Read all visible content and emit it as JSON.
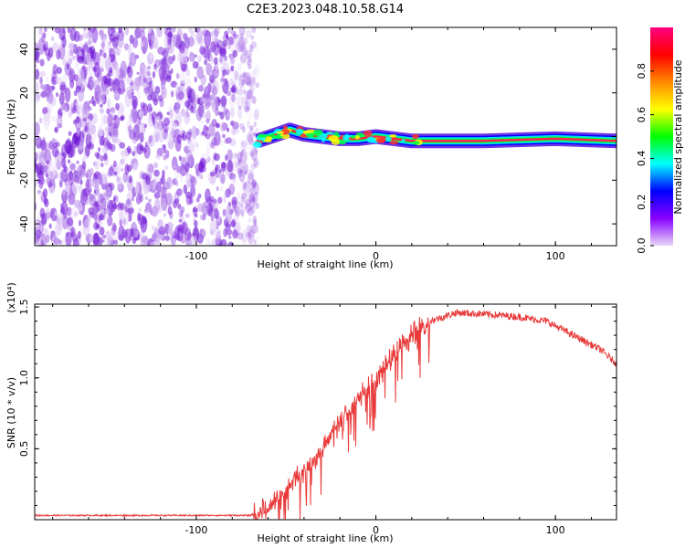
{
  "title": "C2E3.2023.048.10.58.G14",
  "chart_data": [
    {
      "type": "heatmap",
      "xlabel": "Height of straight line (km)",
      "ylabel": "Frequency (Hz)",
      "xlim": [
        -190,
        134
      ],
      "ylim": [
        -50,
        50
      ],
      "x_ticks": [
        -100,
        0,
        100
      ],
      "y_ticks": [
        -40,
        -20,
        0,
        20,
        40
      ],
      "colorbar": {
        "label": "Normalized spectral amplitude",
        "range": [
          0,
          1
        ],
        "ticks": [
          "0.0",
          "0.2",
          "0.4",
          "0.6",
          "0.8"
        ],
        "stops": [
          "#e8d8f8",
          "#8800ff",
          "#0000ff",
          "#00ffff",
          "#00ff00",
          "#ffff00",
          "#ff8800",
          "#ff0000",
          "#ff0080"
        ]
      },
      "noise_region_x": [
        -190,
        -68
      ],
      "signal_start_x": -68,
      "signal_trace": [
        {
          "x": -66,
          "y": -2
        },
        {
          "x": -55,
          "y": 1
        },
        {
          "x": -48,
          "y": 3
        },
        {
          "x": -40,
          "y": 1
        },
        {
          "x": -30,
          "y": 0
        },
        {
          "x": -20,
          "y": -1
        },
        {
          "x": -10,
          "y": -1
        },
        {
          "x": 0,
          "y": 0
        },
        {
          "x": 10,
          "y": -1
        },
        {
          "x": 20,
          "y": -2
        },
        {
          "x": 60,
          "y": -2
        },
        {
          "x": 100,
          "y": -1
        },
        {
          "x": 134,
          "y": -2
        }
      ]
    },
    {
      "type": "line",
      "xlabel": "Height of straight line (km)",
      "ylabel": "SNR (10 * v/v)",
      "y_multiplier": "(x10⁴)",
      "xlim": [
        -190,
        134
      ],
      "ylim": [
        0,
        1.52
      ],
      "x_ticks": [
        -100,
        0,
        100
      ],
      "y_ticks": [
        "0.5",
        "1.0",
        "1.5"
      ],
      "series": [
        {
          "color": "#e83a3a",
          "points": [
            {
              "x": -190,
              "y": 0.03
            },
            {
              "x": -100,
              "y": 0.03
            },
            {
              "x": -70,
              "y": 0.03
            },
            {
              "x": -60,
              "y": 0.08
            },
            {
              "x": -50,
              "y": 0.22
            },
            {
              "x": -40,
              "y": 0.35
            },
            {
              "x": -30,
              "y": 0.5
            },
            {
              "x": -20,
              "y": 0.68
            },
            {
              "x": -10,
              "y": 0.85
            },
            {
              "x": 0,
              "y": 1.0
            },
            {
              "x": 10,
              "y": 1.15
            },
            {
              "x": 20,
              "y": 1.3
            },
            {
              "x": 30,
              "y": 1.4
            },
            {
              "x": 45,
              "y": 1.46
            },
            {
              "x": 60,
              "y": 1.45
            },
            {
              "x": 80,
              "y": 1.43
            },
            {
              "x": 95,
              "y": 1.4
            },
            {
              "x": 110,
              "y": 1.3
            },
            {
              "x": 125,
              "y": 1.2
            },
            {
              "x": 134,
              "y": 1.1
            }
          ]
        }
      ]
    }
  ]
}
